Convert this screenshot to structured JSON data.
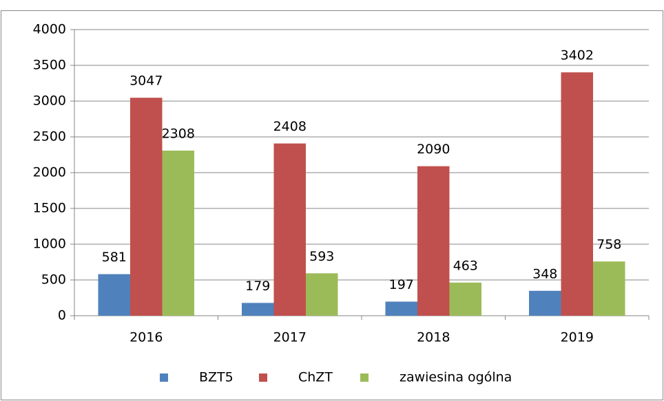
{
  "chart_data": {
    "type": "bar",
    "categories": [
      "2016",
      "2017",
      "2018",
      "2019"
    ],
    "series": [
      {
        "name": "BZT5",
        "color": "#4f81bd",
        "values": [
          581,
          179,
          197,
          348
        ]
      },
      {
        "name": "ChZT",
        "color": "#c0504d",
        "values": [
          3047,
          2408,
          2090,
          3402
        ]
      },
      {
        "name": "zawiesina ogólna",
        "color": "#9bbb59",
        "values": [
          2308,
          593,
          463,
          758
        ]
      }
    ],
    "ylim": [
      0,
      4000
    ],
    "yticks": [
      0,
      500,
      1000,
      1500,
      2000,
      2500,
      3000,
      3500,
      4000
    ],
    "grid": true,
    "legend": "bottom"
  }
}
